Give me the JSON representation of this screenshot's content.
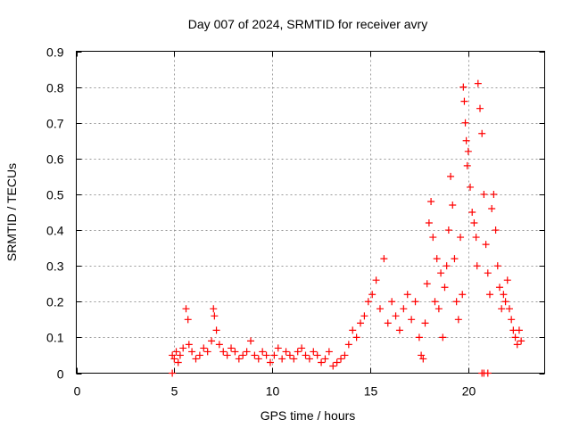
{
  "chart_data": {
    "type": "scatter",
    "title": "Day 007 of 2024, SRMTID for receiver avry",
    "xlabel": "GPS time / hours",
    "ylabel": "SRMTID / TECUs",
    "xlim": [
      0,
      23.9
    ],
    "ylim": [
      0,
      0.9
    ],
    "xticks": [
      0,
      5,
      10,
      15,
      20
    ],
    "yticks": [
      0,
      0.1,
      0.2,
      0.3,
      0.4,
      0.5,
      0.6,
      0.7,
      0.8,
      0.9
    ],
    "grid": true,
    "marker": "plus",
    "color": "#ff0000",
    "series": [
      {
        "name": "SRMTID",
        "x": [
          4.9,
          5.0,
          5.1,
          5.2,
          5.3,
          5.45,
          5.6,
          5.7,
          5.75,
          5.9,
          6.1,
          6.3,
          6.5,
          6.7,
          6.9,
          7.0,
          7.05,
          7.15,
          7.3,
          7.5,
          7.7,
          7.9,
          8.1,
          8.3,
          8.5,
          8.7,
          8.9,
          9.1,
          9.3,
          9.5,
          9.7,
          9.9,
          10.1,
          10.3,
          10.5,
          10.7,
          10.9,
          11.1,
          11.3,
          11.5,
          11.7,
          11.9,
          12.1,
          12.3,
          12.5,
          12.7,
          12.9,
          13.1,
          13.3,
          13.5,
          13.7,
          13.9,
          14.1,
          14.3,
          14.5,
          14.7,
          14.9,
          15.1,
          15.3,
          15.5,
          15.7,
          15.9,
          16.1,
          16.3,
          16.5,
          16.7,
          16.9,
          17.1,
          17.3,
          17.5,
          17.6,
          17.7,
          17.8,
          17.9,
          18.0,
          18.1,
          18.2,
          18.3,
          18.4,
          18.5,
          18.6,
          18.7,
          18.8,
          18.9,
          19.0,
          19.1,
          19.2,
          19.3,
          19.4,
          19.5,
          19.6,
          19.7,
          19.75,
          19.8,
          19.85,
          19.9,
          19.95,
          20.0,
          20.1,
          20.2,
          20.3,
          20.4,
          20.45,
          20.5,
          20.6,
          20.7,
          20.8,
          20.9,
          21.0,
          21.1,
          21.2,
          21.3,
          21.4,
          21.5,
          21.6,
          21.7,
          21.8,
          21.9,
          22.0,
          22.1,
          22.2,
          22.3,
          22.4,
          22.5,
          22.6,
          22.7,
          4.9,
          20.7,
          20.8,
          21.0
        ],
        "values": [
          0.05,
          0.04,
          0.06,
          0.03,
          0.05,
          0.07,
          0.18,
          0.15,
          0.08,
          0.06,
          0.04,
          0.05,
          0.07,
          0.06,
          0.09,
          0.18,
          0.16,
          0.12,
          0.08,
          0.06,
          0.05,
          0.07,
          0.06,
          0.04,
          0.05,
          0.06,
          0.09,
          0.05,
          0.04,
          0.06,
          0.05,
          0.03,
          0.05,
          0.07,
          0.04,
          0.06,
          0.05,
          0.04,
          0.06,
          0.07,
          0.05,
          0.04,
          0.06,
          0.05,
          0.03,
          0.04,
          0.06,
          0.02,
          0.03,
          0.04,
          0.05,
          0.08,
          0.12,
          0.1,
          0.14,
          0.16,
          0.2,
          0.22,
          0.26,
          0.18,
          0.32,
          0.14,
          0.2,
          0.16,
          0.12,
          0.18,
          0.22,
          0.15,
          0.2,
          0.1,
          0.05,
          0.04,
          0.14,
          0.25,
          0.42,
          0.48,
          0.38,
          0.2,
          0.32,
          0.18,
          0.28,
          0.1,
          0.24,
          0.3,
          0.4,
          0.55,
          0.47,
          0.32,
          0.2,
          0.15,
          0.38,
          0.22,
          0.8,
          0.76,
          0.7,
          0.65,
          0.58,
          0.62,
          0.52,
          0.45,
          0.42,
          0.38,
          0.3,
          0.81,
          0.74,
          0.67,
          0.5,
          0.36,
          0.28,
          0.22,
          0.46,
          0.5,
          0.4,
          0.3,
          0.24,
          0.18,
          0.22,
          0.2,
          0.26,
          0.18,
          0.15,
          0.12,
          0.1,
          0.08,
          0.12,
          0.09,
          0.0,
          0.0,
          0.0,
          0.0
        ]
      }
    ]
  }
}
